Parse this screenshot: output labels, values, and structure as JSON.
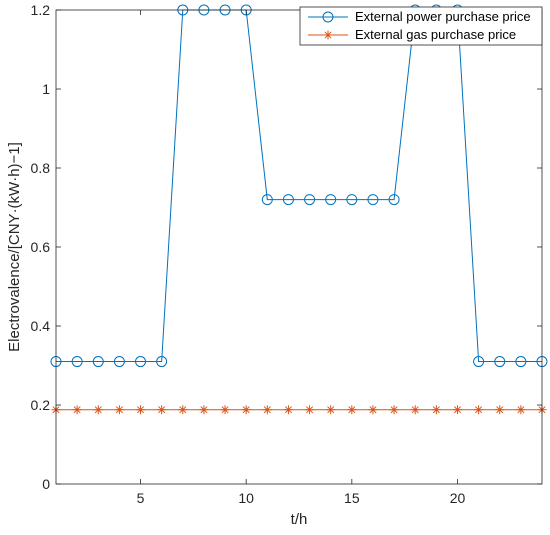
{
  "chart_data": {
    "type": "line",
    "xlabel": "t/h",
    "ylabel": "Electrovalence/[CNY·(kW·h)−1]",
    "xlim": [
      1,
      24
    ],
    "ylim": [
      0,
      1.2
    ],
    "xticks": [
      5,
      10,
      15,
      20
    ],
    "yticks": [
      0,
      0.2,
      0.4,
      0.6,
      0.8,
      1,
      1.2
    ],
    "ytick_labels": [
      "0",
      "0.2",
      "0.4",
      "0.6",
      "0.8",
      "1",
      "1.2"
    ],
    "grid": false,
    "legend_position": "top-right",
    "x": [
      1,
      2,
      3,
      4,
      5,
      6,
      7,
      8,
      9,
      10,
      11,
      12,
      13,
      14,
      15,
      16,
      17,
      18,
      19,
      20,
      21,
      22,
      23,
      24
    ],
    "series": [
      {
        "name": "External power purchase price",
        "color": "#0072BD",
        "marker": "circle",
        "values": [
          0.31,
          0.31,
          0.31,
          0.31,
          0.31,
          0.31,
          1.2,
          1.2,
          1.2,
          1.2,
          0.72,
          0.72,
          0.72,
          0.72,
          0.72,
          0.72,
          0.72,
          1.2,
          1.2,
          1.2,
          0.31,
          0.31,
          0.31,
          0.31
        ]
      },
      {
        "name": "External gas purchase price",
        "color": "#D95319",
        "marker": "star",
        "values": [
          0.188,
          0.188,
          0.188,
          0.188,
          0.188,
          0.188,
          0.188,
          0.188,
          0.188,
          0.188,
          0.188,
          0.188,
          0.188,
          0.188,
          0.188,
          0.188,
          0.188,
          0.188,
          0.188,
          0.188,
          0.188,
          0.188,
          0.188,
          0.188
        ]
      }
    ]
  }
}
